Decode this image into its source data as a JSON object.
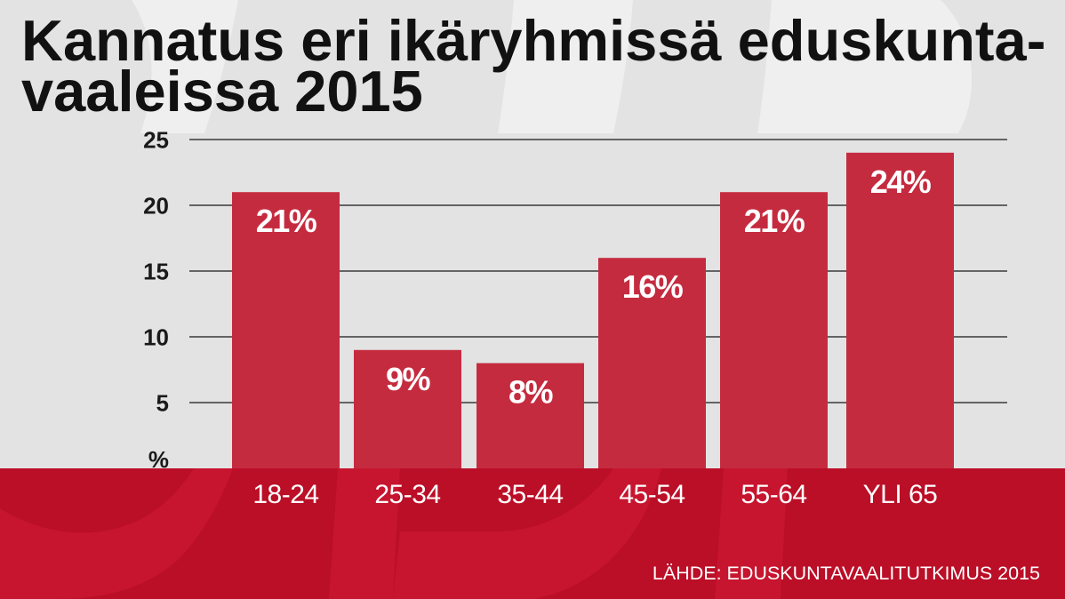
{
  "watermark": "SDP",
  "colors": {
    "background": "#e3e3e3",
    "band": "#bb0e27",
    "bar": "#c52b3f",
    "watermark_on_background": "#efefef",
    "watermark_on_band": "#c7152f",
    "title_text": "#111111",
    "axis_text": "#1a1a1a",
    "gridline": "#3a3a3a",
    "label_text": "#ffffff"
  },
  "chart_data": {
    "type": "bar",
    "title": "Kannatus eri ikäryhmissä eduskunta-\nvaaleissa 2015",
    "xlabel": "",
    "ylabel": "%",
    "categories": [
      "18-24",
      "25-34",
      "35-44",
      "45-54",
      "55-64",
      "YLI 65"
    ],
    "values": [
      21,
      9,
      8,
      16,
      21,
      24
    ],
    "data_labels": [
      "21%",
      "9%",
      "8%",
      "16%",
      "21%",
      "24%"
    ],
    "ylim": [
      0,
      25
    ],
    "yticks": [
      5,
      10,
      15,
      20,
      25
    ],
    "grid": true,
    "source": "LÄHDE: EDUSKUNTAVAALITUTKIMUS 2015"
  }
}
